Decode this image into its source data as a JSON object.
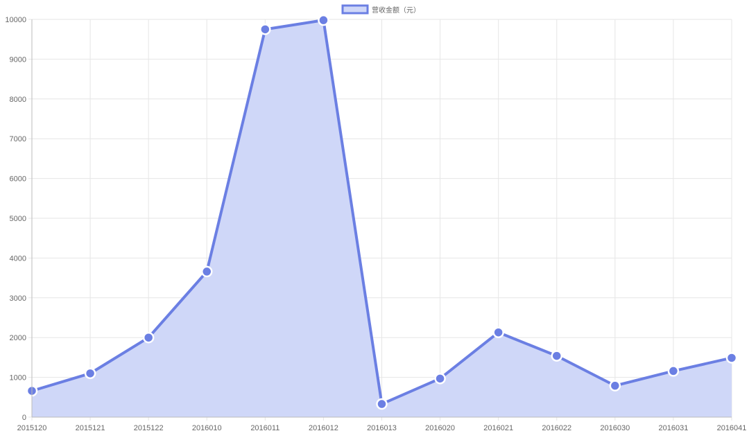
{
  "chart_data": {
    "type": "area",
    "categories": [
      "2015120",
      "2015121",
      "2015122",
      "2016010",
      "2016011",
      "2016012",
      "2016013",
      "2016020",
      "2016021",
      "2016022",
      "2016030",
      "2016031",
      "2016041"
    ],
    "series": [
      {
        "name": "营收金额（元）",
        "values": [
          660,
          1100,
          2000,
          3660,
          9750,
          9980,
          330,
          970,
          2130,
          1540,
          790,
          1160,
          1490
        ]
      }
    ],
    "ylim": [
      0,
      10000
    ],
    "yticks": [
      0,
      1000,
      2000,
      3000,
      4000,
      5000,
      6000,
      7000,
      8000,
      9000,
      10000
    ],
    "grid": true,
    "legend": "top-center",
    "colors": {
      "line": "#6b7fe3",
      "fill": "#cfd7f8",
      "point_stroke": "#ffffff",
      "grid": "#e6e6e6",
      "axis": "#bbbbbb"
    }
  }
}
